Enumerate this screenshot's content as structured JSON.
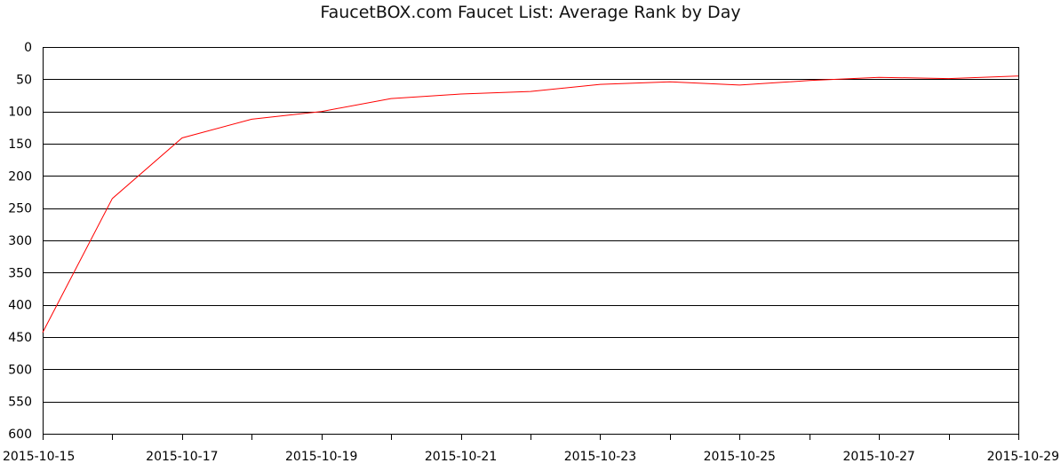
{
  "chart_data": {
    "type": "line",
    "title": "FaucetBOX.com Faucet List: Average Rank by Day",
    "xlabel": "",
    "ylabel": "",
    "ylim": [
      0,
      600
    ],
    "y_inverted": true,
    "y_ticks": [
      0,
      50,
      100,
      150,
      200,
      250,
      300,
      350,
      400,
      450,
      500,
      550,
      600
    ],
    "x_tick_labels": [
      "2015-10-15",
      "2015-10-17",
      "2015-10-19",
      "2015-10-21",
      "2015-10-23",
      "2015-10-25",
      "2015-10-27",
      "2015-10-29"
    ],
    "x": [
      "2015-10-15",
      "2015-10-16",
      "2015-10-17",
      "2015-10-18",
      "2015-10-19",
      "2015-10-20",
      "2015-10-21",
      "2015-10-22",
      "2015-10-23",
      "2015-10-24",
      "2015-10-25",
      "2015-10-26",
      "2015-10-27",
      "2015-10-28",
      "2015-10-29"
    ],
    "series": [
      {
        "values": [
          443,
          235,
          141,
          112,
          100,
          80,
          73,
          69,
          58,
          54,
          59,
          52,
          47,
          49,
          45
        ],
        "color": "#ff0000"
      }
    ],
    "grid": true,
    "legend": false
  }
}
